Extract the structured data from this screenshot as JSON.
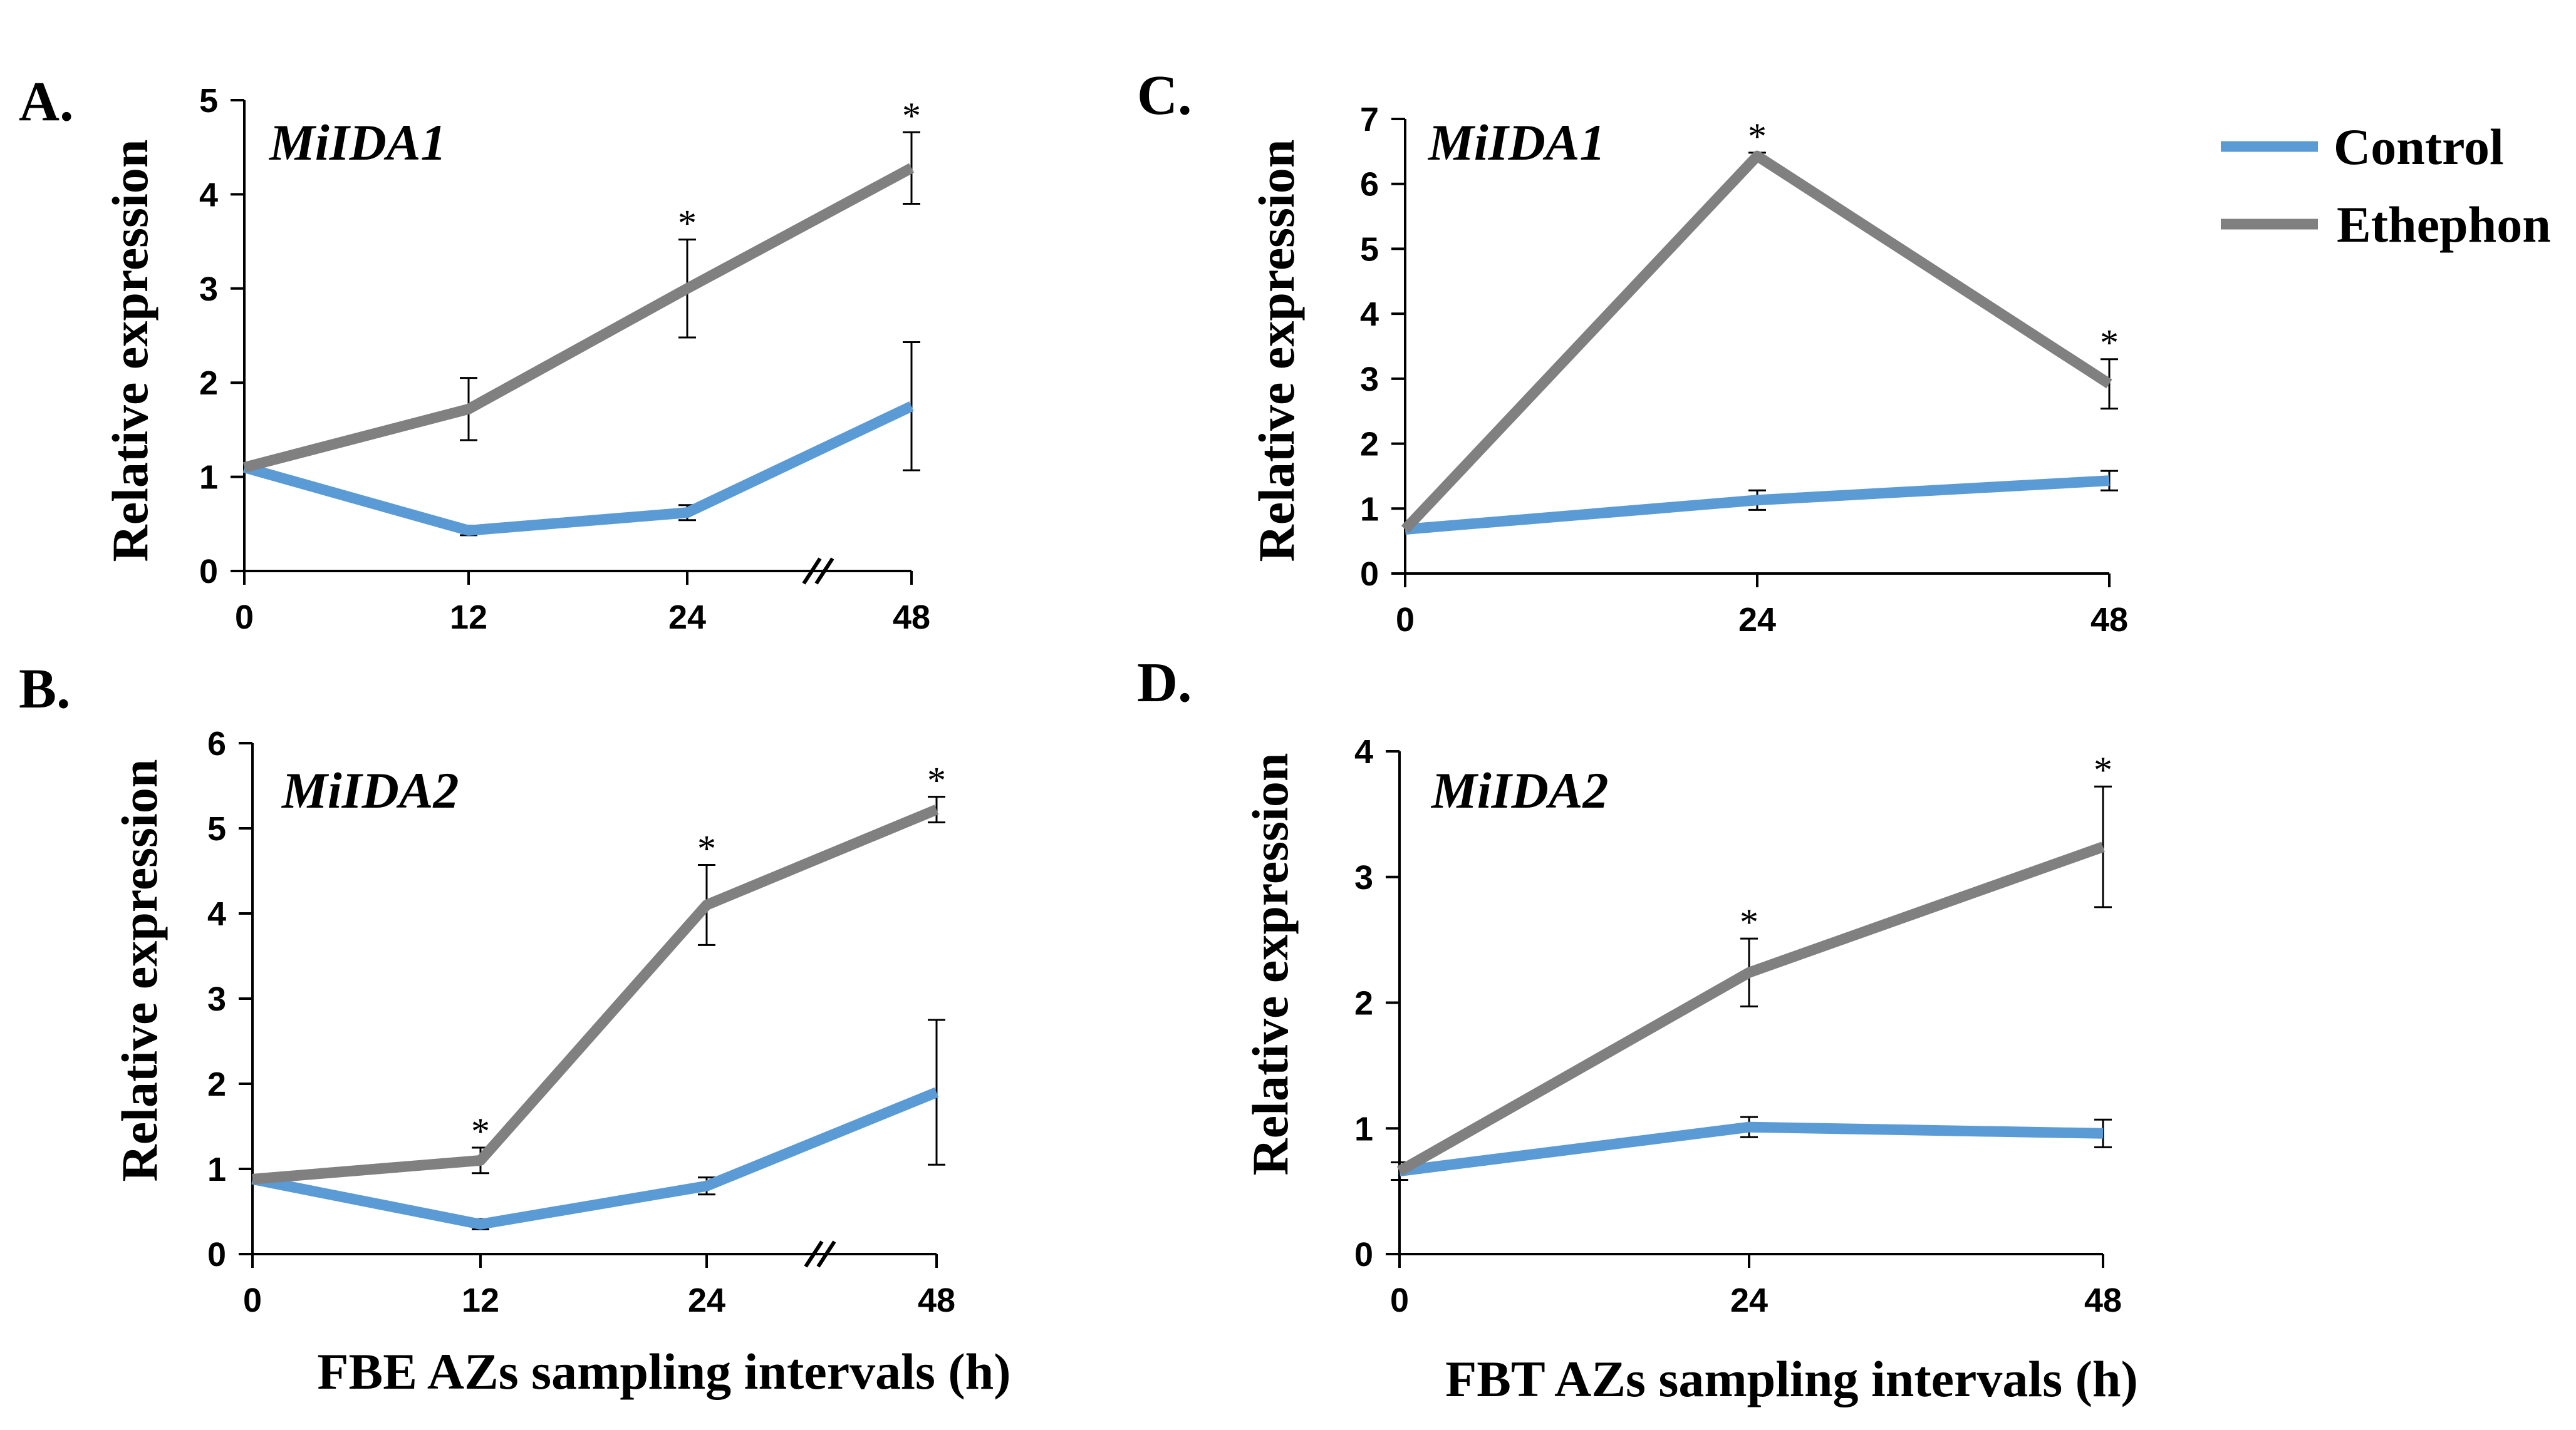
{
  "legend": {
    "entries": [
      {
        "name": "Control",
        "color": "#5b9bd5"
      },
      {
        "name": "Ethephon",
        "color": "#808080"
      }
    ]
  },
  "chart_data": [
    {
      "type": "line",
      "panel_label": "A.",
      "title": "MiIDA1",
      "ylabel": "Relative expression",
      "xlabel": "",
      "ylim": [
        0,
        5
      ],
      "yticks": [
        0,
        1,
        2,
        3,
        4,
        5
      ],
      "categories": [
        "0",
        "12",
        "24",
        "48"
      ],
      "axis_break": true,
      "series": [
        {
          "name": "Control",
          "values": [
            1.1,
            0.43,
            0.62,
            1.75
          ],
          "errors": [
            0,
            0.05,
            0.08,
            0.68
          ],
          "significant": [
            false,
            false,
            false,
            false
          ]
        },
        {
          "name": "Ethephon",
          "values": [
            1.1,
            1.72,
            3.0,
            4.28
          ],
          "errors": [
            0,
            0.33,
            0.52,
            0.38
          ],
          "significant": [
            false,
            false,
            true,
            true
          ]
        }
      ]
    },
    {
      "type": "line",
      "panel_label": "B.",
      "title": "MiIDA2",
      "ylabel": "Relative expression",
      "xlabel": "FBE AZs sampling intervals (h)",
      "ylim": [
        0,
        6
      ],
      "yticks": [
        0,
        1,
        2,
        3,
        4,
        5,
        6
      ],
      "categories": [
        "0",
        "12",
        "24",
        "48"
      ],
      "axis_break": true,
      "series": [
        {
          "name": "Control",
          "values": [
            0.88,
            0.35,
            0.8,
            1.9
          ],
          "errors": [
            0,
            0.06,
            0.1,
            0.85
          ],
          "significant": [
            false,
            false,
            false,
            false
          ]
        },
        {
          "name": "Ethephon",
          "values": [
            0.88,
            1.1,
            4.1,
            5.22
          ],
          "errors": [
            0,
            0.15,
            0.47,
            0.15
          ],
          "significant": [
            false,
            true,
            true,
            true
          ]
        }
      ]
    },
    {
      "type": "line",
      "panel_label": "C.",
      "title": "MiIDA1",
      "ylabel": "Relative expression",
      "xlabel": "",
      "ylim": [
        0,
        7
      ],
      "yticks": [
        0,
        1,
        2,
        3,
        4,
        5,
        6,
        7
      ],
      "categories": [
        "0",
        "24",
        "48"
      ],
      "axis_break": false,
      "series": [
        {
          "name": "Control",
          "values": [
            0.68,
            1.13,
            1.43
          ],
          "errors": [
            0,
            0.15,
            0.15
          ],
          "significant": [
            false,
            false,
            false
          ]
        },
        {
          "name": "Ethephon",
          "values": [
            0.68,
            6.43,
            2.92
          ],
          "errors": [
            0,
            0.05,
            0.38
          ],
          "significant": [
            false,
            true,
            true
          ]
        }
      ]
    },
    {
      "type": "line",
      "panel_label": "D.",
      "title": "MiIDA2",
      "ylabel": "Relative expression",
      "xlabel": "FBT AZs sampling intervals (h)",
      "ylim": [
        0,
        4
      ],
      "yticks": [
        0,
        1,
        2,
        3,
        4
      ],
      "categories": [
        "0",
        "24",
        "48"
      ],
      "axis_break": false,
      "series": [
        {
          "name": "Control",
          "values": [
            0.66,
            1.01,
            0.96
          ],
          "errors": [
            0.07,
            0.08,
            0.11
          ],
          "significant": [
            false,
            false,
            false
          ]
        },
        {
          "name": "Ethephon",
          "values": [
            0.66,
            2.24,
            3.24
          ],
          "errors": [
            0.07,
            0.27,
            0.48
          ],
          "significant": [
            false,
            true,
            true
          ]
        }
      ]
    }
  ]
}
